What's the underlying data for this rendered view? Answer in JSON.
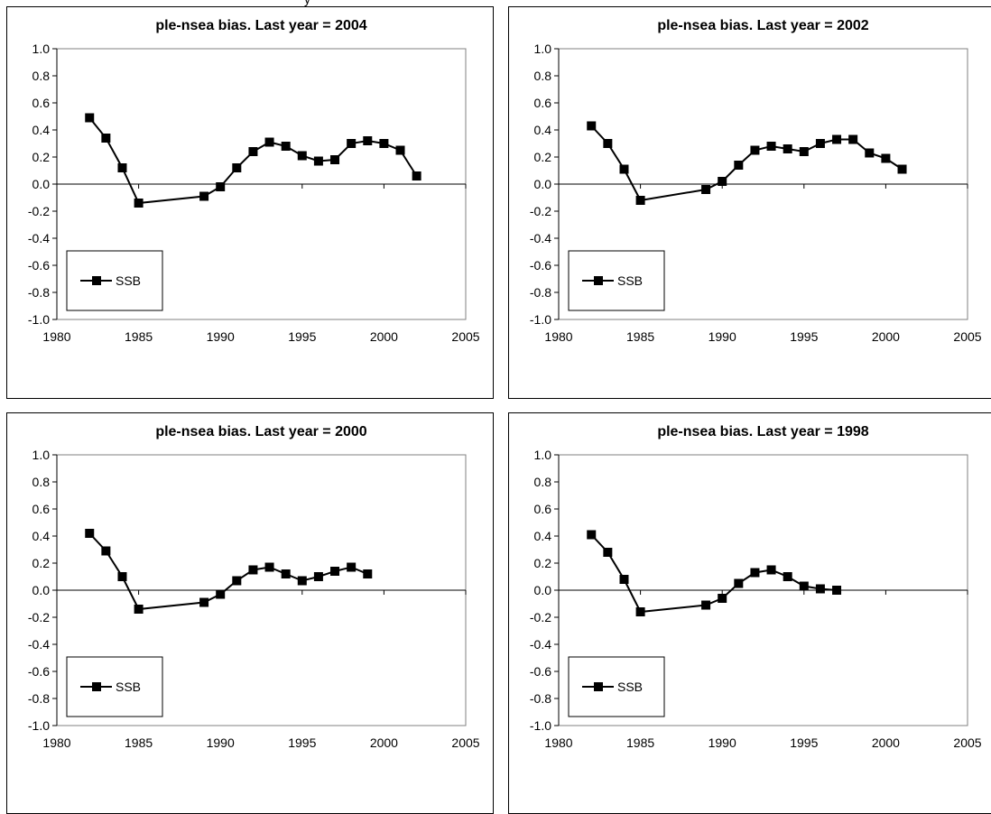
{
  "top_fragment": "y",
  "chart_data": [
    {
      "type": "line",
      "title": "ple-nsea bias. Last year = 2004",
      "xlabel": "",
      "ylabel": "",
      "xlim": [
        1980,
        2005
      ],
      "ylim": [
        -1.0,
        1.0
      ],
      "xticks": [
        1980,
        1985,
        1990,
        1995,
        2000,
        2005
      ],
      "yticks": [
        -1.0,
        -0.8,
        -0.6,
        -0.4,
        -0.2,
        0.0,
        0.2,
        0.4,
        0.6,
        0.8,
        1.0
      ],
      "legend": "bottom-left",
      "grid": false,
      "series": [
        {
          "name": "SSB",
          "color": "#000000",
          "marker": "square",
          "x": [
            1982,
            1983,
            1984,
            1985,
            1989,
            1990,
            1991,
            1992,
            1993,
            1994,
            1995,
            1996,
            1997,
            1998,
            1999,
            2000,
            2001,
            2002
          ],
          "y": [
            0.49,
            0.34,
            0.12,
            -0.14,
            -0.09,
            -0.02,
            0.12,
            0.24,
            0.31,
            0.28,
            0.21,
            0.17,
            0.18,
            0.3,
            0.32,
            0.3,
            0.25,
            0.06
          ]
        }
      ]
    },
    {
      "type": "line",
      "title": "ple-nsea bias. Last year = 2002",
      "xlabel": "",
      "ylabel": "",
      "xlim": [
        1980,
        2005
      ],
      "ylim": [
        -1.0,
        1.0
      ],
      "xticks": [
        1980,
        1985,
        1990,
        1995,
        2000,
        2005
      ],
      "yticks": [
        -1.0,
        -0.8,
        -0.6,
        -0.4,
        -0.2,
        0.0,
        0.2,
        0.4,
        0.6,
        0.8,
        1.0
      ],
      "legend": "bottom-left",
      "grid": false,
      "series": [
        {
          "name": "SSB",
          "color": "#000000",
          "marker": "square",
          "x": [
            1982,
            1983,
            1984,
            1985,
            1989,
            1990,
            1991,
            1992,
            1993,
            1994,
            1995,
            1996,
            1997,
            1998,
            1999,
            2000,
            2001
          ],
          "y": [
            0.43,
            0.3,
            0.11,
            -0.12,
            -0.04,
            0.02,
            0.14,
            0.25,
            0.28,
            0.26,
            0.24,
            0.3,
            0.33,
            0.33,
            0.23,
            0.19,
            0.11
          ]
        }
      ]
    },
    {
      "type": "line",
      "title": "ple-nsea bias. Last year = 2000",
      "xlabel": "",
      "ylabel": "",
      "xlim": [
        1980,
        2005
      ],
      "ylim": [
        -1.0,
        1.0
      ],
      "xticks": [
        1980,
        1985,
        1990,
        1995,
        2000,
        2005
      ],
      "yticks": [
        -1.0,
        -0.8,
        -0.6,
        -0.4,
        -0.2,
        0.0,
        0.2,
        0.4,
        0.6,
        0.8,
        1.0
      ],
      "legend": "bottom-left",
      "grid": false,
      "series": [
        {
          "name": "SSB",
          "color": "#000000",
          "marker": "square",
          "x": [
            1982,
            1983,
            1984,
            1985,
            1989,
            1990,
            1991,
            1992,
            1993,
            1994,
            1995,
            1996,
            1997,
            1998,
            1999
          ],
          "y": [
            0.42,
            0.29,
            0.1,
            -0.14,
            -0.09,
            -0.03,
            0.07,
            0.15,
            0.17,
            0.12,
            0.07,
            0.1,
            0.14,
            0.17,
            0.12
          ]
        }
      ]
    },
    {
      "type": "line",
      "title": "ple-nsea bias. Last year = 1998",
      "xlabel": "",
      "ylabel": "",
      "xlim": [
        1980,
        2005
      ],
      "ylim": [
        -1.0,
        1.0
      ],
      "xticks": [
        1980,
        1985,
        1990,
        1995,
        2000,
        2005
      ],
      "yticks": [
        -1.0,
        -0.8,
        -0.6,
        -0.4,
        -0.2,
        0.0,
        0.2,
        0.4,
        0.6,
        0.8,
        1.0
      ],
      "legend": "bottom-left",
      "grid": false,
      "series": [
        {
          "name": "SSB",
          "color": "#000000",
          "marker": "square",
          "x": [
            1982,
            1983,
            1984,
            1985,
            1989,
            1990,
            1991,
            1992,
            1993,
            1994,
            1995,
            1996,
            1997
          ],
          "y": [
            0.41,
            0.28,
            0.08,
            -0.16,
            -0.11,
            -0.06,
            0.05,
            0.13,
            0.15,
            0.1,
            0.03,
            0.01,
            0.0
          ]
        }
      ]
    }
  ]
}
